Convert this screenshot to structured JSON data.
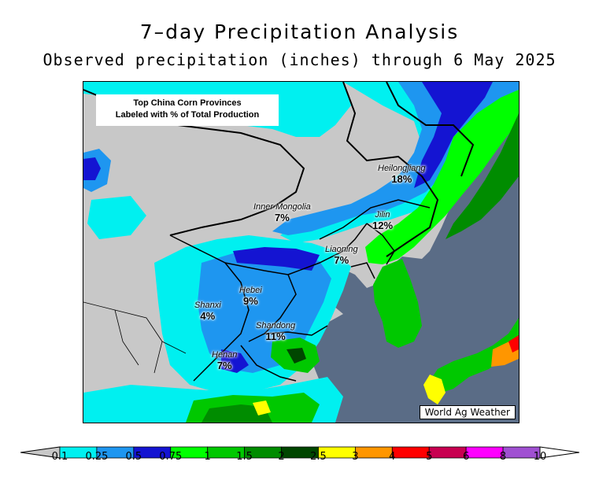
{
  "title": "7–day Precipitation Analysis",
  "subtitle": "Observed precipitation (inches) through 6 May 2025",
  "info_box": {
    "line1": "Top China Corn Provinces",
    "line2": "Labeled with % of Total Production"
  },
  "provinces": [
    {
      "name": "Heilongjiang",
      "pct": "18%"
    },
    {
      "name": "Inner Mongolia",
      "pct": "7%"
    },
    {
      "name": "Jilin",
      "pct": "12%"
    },
    {
      "name": "Liaoning",
      "pct": "7%"
    },
    {
      "name": "Hebei",
      "pct": "9%"
    },
    {
      "name": "Shanxi",
      "pct": "4%"
    },
    {
      "name": "Shandong",
      "pct": "11%"
    },
    {
      "name": "Henan",
      "pct": "7%"
    }
  ],
  "credit": "World Ag Weather",
  "legend": {
    "ticks": [
      "0.1",
      "0.25",
      "0.5",
      "0.75",
      "1",
      "1.5",
      "2",
      "2.5",
      "3",
      "4",
      "5",
      "6",
      "8",
      "10"
    ],
    "colors": [
      "#00f0f0",
      "#1e96f0",
      "#1414d2",
      "#00ff00",
      "#00c800",
      "#008c00",
      "#004600",
      "#ffff00",
      "#ff9600",
      "#ff0000",
      "#c80050",
      "#ff00ff",
      "#a050d2"
    ],
    "below_color": "#c8c8c8",
    "above_color": "#ffffff"
  }
}
